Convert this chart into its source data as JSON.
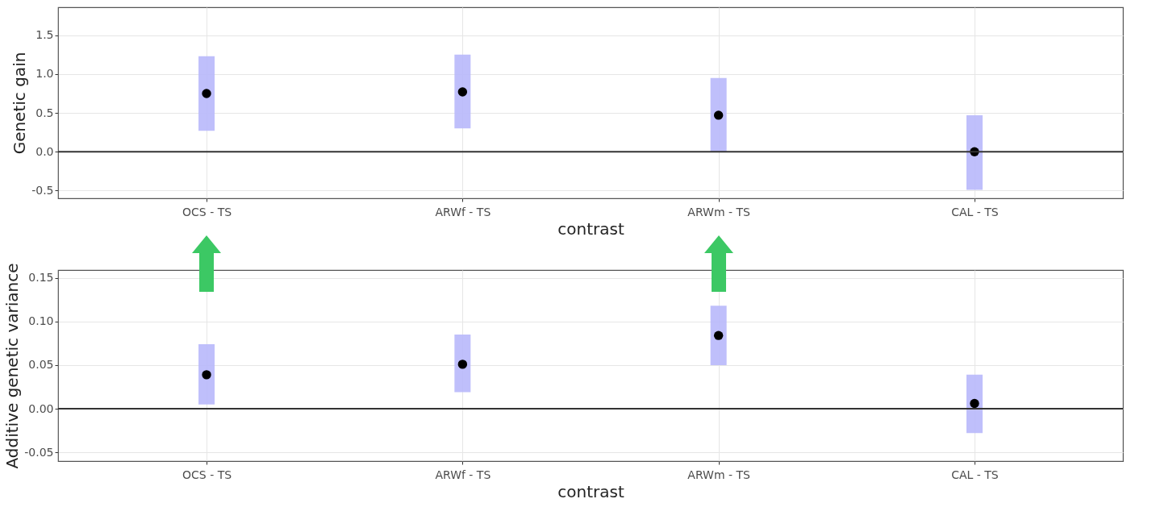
{
  "chart_data": [
    {
      "type": "scatter",
      "xlabel": "contrast",
      "ylabel": "Genetic gain",
      "categories": [
        "OCS - TS",
        "ARWf - TS",
        "ARWm - TS",
        "CAL - TS"
      ],
      "series": [
        {
          "color": "#000000",
          "values": [
            0.75,
            0.77,
            0.47,
            0.0
          ],
          "errors": [
            [
              0.27,
              1.23
            ],
            [
              0.3,
              1.25
            ],
            [
              0.0,
              0.95
            ],
            [
              -0.49,
              0.47
            ]
          ]
        }
      ],
      "ylim": [
        -0.6,
        1.86
      ],
      "yticks": [
        -0.5,
        {
          "value": 0,
          "label": "0.0"
        },
        0.5,
        {
          "value": 1,
          "label": "1.0"
        },
        1.5
      ],
      "grid": true,
      "marker": "circle",
      "ref_lines": [
        {
          "axis": "y",
          "value": 0,
          "color": "#333333"
        }
      ]
    },
    {
      "type": "scatter",
      "xlabel": "contrast",
      "ylabel": "Additive genetic variance",
      "categories": [
        "OCS - TS",
        "ARWf - TS",
        "ARWm - TS",
        "CAL - TS"
      ],
      "series": [
        {
          "color": "#000000",
          "values": [
            0.039,
            0.051,
            0.084,
            0.006
          ],
          "errors": [
            [
              0.005,
              0.074
            ],
            [
              0.019,
              0.085
            ],
            [
              0.05,
              0.118
            ],
            [
              -0.028,
              0.039
            ]
          ]
        }
      ],
      "ylim": [
        -0.06,
        0.159
      ],
      "yticks": [
        -0.05,
        {
          "value": 0,
          "label": "0.00"
        },
        0.05,
        {
          "value": 0.1,
          "label": "0.10"
        },
        0.15
      ],
      "grid": true,
      "marker": "circle",
      "ref_lines": [
        {
          "axis": "y",
          "value": 0,
          "color": "#333333"
        }
      ]
    }
  ]
}
